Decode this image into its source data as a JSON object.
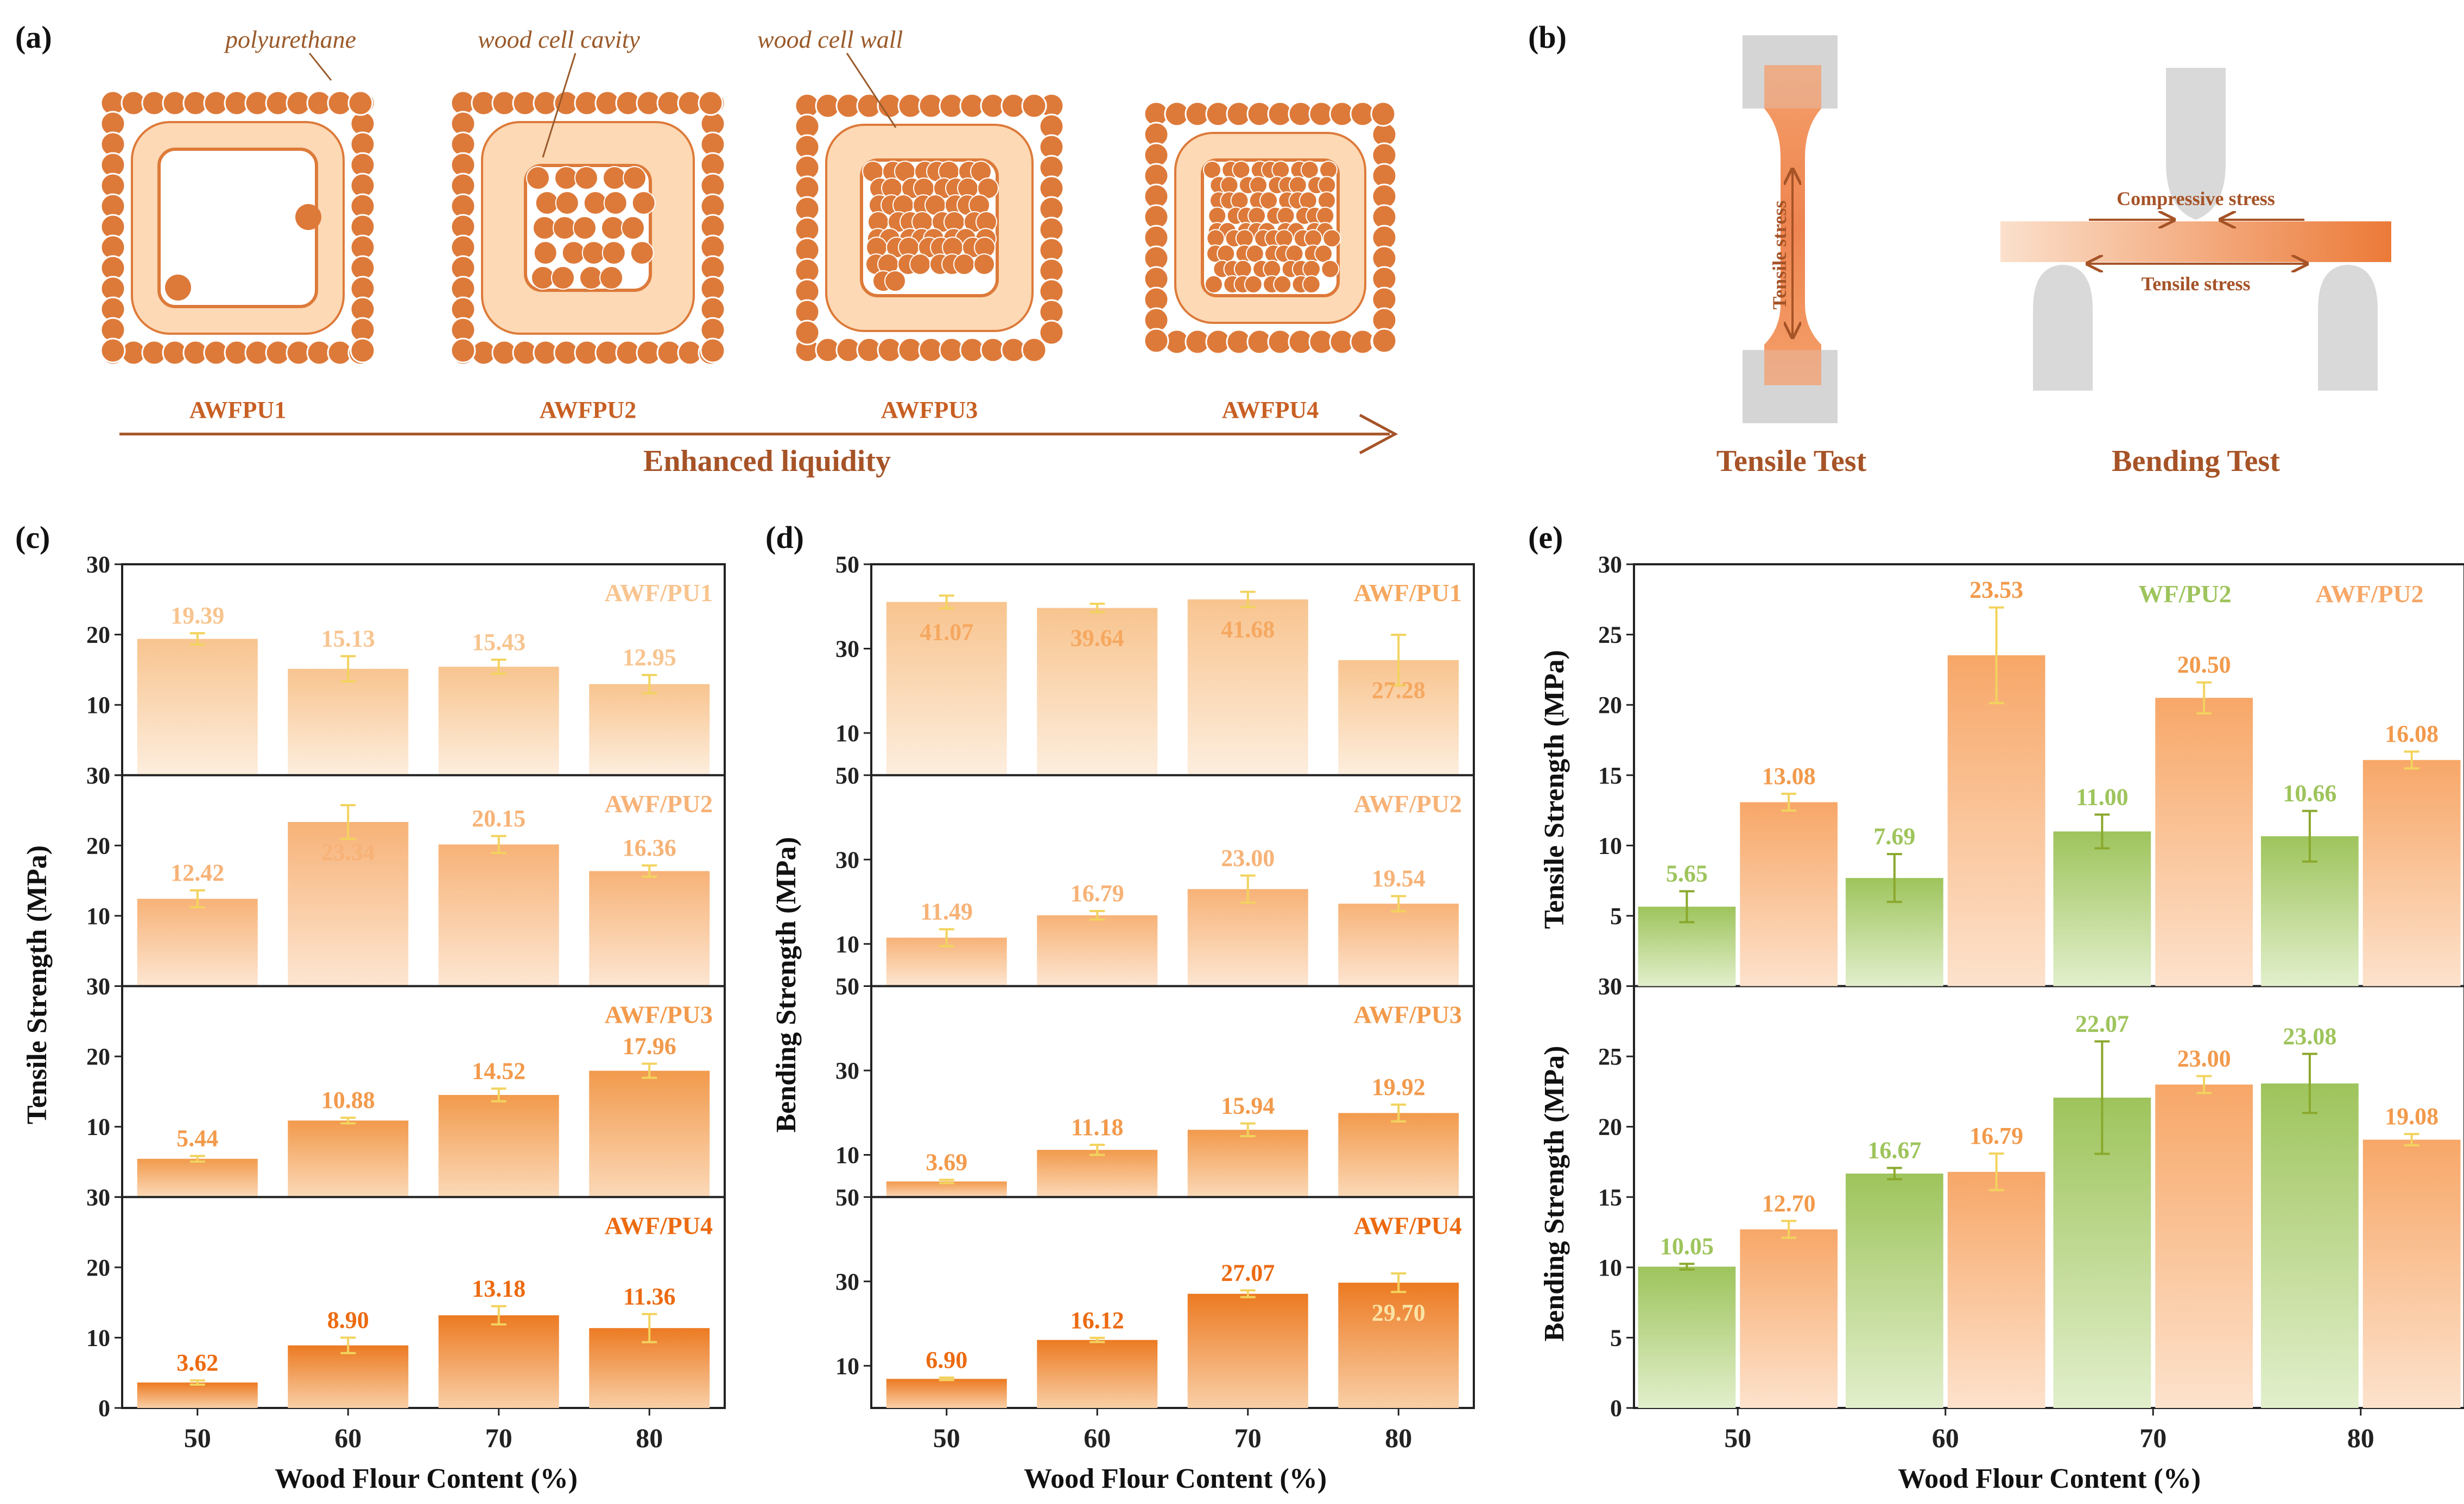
{
  "panel_labels": {
    "a": "(a)",
    "b": "(b)",
    "c": "(c)",
    "d": "(d)",
    "e": "(e)"
  },
  "schematic": {
    "labels": {
      "polyurethane": "polyurethane",
      "cavity": "wood cell cavity",
      "wall": "wood cell wall"
    },
    "samples": [
      "AWFPU1",
      "AWFPU2",
      "AWFPU3",
      "AWFPU4"
    ],
    "arrow_label": "Enhanced liquidity"
  },
  "tests": {
    "tensile_title": "Tensile Test",
    "bending_title": "Bending Test",
    "tensile_stress": "Tensile stress",
    "compressive_stress": "Compressive stress",
    "bend_tensile_stress": "Tensile stress"
  },
  "colors": {
    "pu1": "#f8c48f",
    "pu2": "#f7b277",
    "pu3": "#f29a4c",
    "pu4": "#ec7a22",
    "wf": "#9ec45c",
    "awf": "#f7a768",
    "err_light": "#f2d35e",
    "err_wf": "#8aa82c"
  },
  "chart_data": [
    {
      "id": "c",
      "type": "bar",
      "title": "",
      "ylabel": "Tensile Strength (MPa)",
      "xlabel": "Wood Flour Content (%)",
      "categories": [
        "50",
        "60",
        "70",
        "80"
      ],
      "ylim": [
        0,
        30
      ],
      "yticks": [
        0,
        10,
        20,
        30
      ],
      "series": [
        {
          "name": "AWF/PU1",
          "values": [
            19.39,
            15.13,
            15.43,
            12.95
          ],
          "labels": [
            "19.39",
            "15.13",
            "15.43",
            "12.95"
          ],
          "errors": [
            0.8,
            1.8,
            1.0,
            1.3
          ]
        },
        {
          "name": "AWF/PU2",
          "values": [
            12.42,
            23.34,
            20.15,
            16.36
          ],
          "labels": [
            "12.42",
            "23.34",
            "20.15",
            "16.36"
          ],
          "errors": [
            1.2,
            2.4,
            1.2,
            0.8
          ]
        },
        {
          "name": "AWF/PU3",
          "values": [
            5.44,
            10.88,
            14.52,
            17.96
          ],
          "labels": [
            "5.44",
            "10.88",
            "14.52",
            "17.96"
          ],
          "errors": [
            0.4,
            0.4,
            0.9,
            1.0
          ]
        },
        {
          "name": "AWF/PU4",
          "values": [
            3.62,
            8.9,
            13.18,
            11.36
          ],
          "labels": [
            "3.62",
            "8.90",
            "13.18",
            "11.36"
          ],
          "errors": [
            0.3,
            1.1,
            1.3,
            2.0
          ]
        }
      ]
    },
    {
      "id": "d",
      "type": "bar",
      "title": "",
      "ylabel": "Bending Strength (MPa)",
      "xlabel": "Wood Flour Content (%)",
      "categories": [
        "50",
        "60",
        "70",
        "80"
      ],
      "ylim": [
        0,
        50
      ],
      "yticks": [
        10,
        30,
        50
      ],
      "series": [
        {
          "name": "AWF/PU1",
          "values": [
            41.07,
            39.64,
            41.68,
            27.28
          ],
          "labels": [
            "41.07",
            "39.64",
            "41.68",
            "27.28"
          ],
          "errors": [
            1.5,
            1.0,
            1.8,
            6.0
          ]
        },
        {
          "name": "AWF/PU2",
          "values": [
            11.49,
            16.79,
            23.0,
            19.54
          ],
          "labels": [
            "11.49",
            "16.79",
            "23.00",
            "19.54"
          ],
          "errors": [
            2.0,
            1.0,
            3.2,
            1.8
          ]
        },
        {
          "name": "AWF/PU3",
          "values": [
            3.69,
            11.18,
            15.94,
            19.92
          ],
          "labels": [
            "3.69",
            "11.18",
            "15.94",
            "19.92"
          ],
          "errors": [
            0.4,
            1.2,
            1.5,
            2.0
          ]
        },
        {
          "name": "AWF/PU4",
          "values": [
            6.9,
            16.12,
            27.07,
            29.7
          ],
          "labels": [
            "6.90",
            "16.12",
            "27.07",
            "29.70"
          ],
          "errors": [
            0.3,
            0.5,
            0.8,
            2.2
          ]
        }
      ]
    },
    {
      "id": "e",
      "type": "bar",
      "title": "",
      "xlabel": "Wood Flour Content (%)",
      "categories": [
        "50",
        "60",
        "70",
        "80"
      ],
      "legend": [
        "WF/PU2",
        "AWF/PU2"
      ],
      "subplots": [
        {
          "ylabel": "Tensile Strength (MPa)",
          "ylim": [
            0,
            30
          ],
          "yticks": [
            0,
            5,
            10,
            15,
            20,
            25,
            30
          ],
          "series": [
            {
              "name": "WF/PU2",
              "values": [
                5.65,
                7.69,
                11.0,
                10.66
              ],
              "labels": [
                "5.65",
                "7.69",
                "11.00",
                "10.66"
              ],
              "errors": [
                1.1,
                1.7,
                1.2,
                1.8
              ]
            },
            {
              "name": "AWF/PU2",
              "values": [
                13.08,
                23.53,
                20.5,
                16.08
              ],
              "labels": [
                "13.08",
                "23.53",
                "20.50",
                "16.08"
              ],
              "errors": [
                0.6,
                3.4,
                1.1,
                0.6
              ]
            }
          ]
        },
        {
          "ylabel": "Bending Strength (MPa)",
          "ylim": [
            0,
            30
          ],
          "yticks": [
            0,
            5,
            10,
            15,
            20,
            25,
            30
          ],
          "series": [
            {
              "name": "WF/PU2",
              "values": [
                10.05,
                16.67,
                22.07,
                23.08
              ],
              "labels": [
                "10.05",
                "16.67",
                "22.07",
                "23.08"
              ],
              "errors": [
                0.2,
                0.4,
                4.0,
                2.1
              ]
            },
            {
              "name": "AWF/PU2",
              "values": [
                12.7,
                16.79,
                23.0,
                19.08
              ],
              "labels": [
                "12.70",
                "16.79",
                "23.00",
                "19.08"
              ],
              "errors": [
                0.6,
                1.3,
                0.6,
                0.4
              ]
            }
          ]
        }
      ]
    }
  ]
}
